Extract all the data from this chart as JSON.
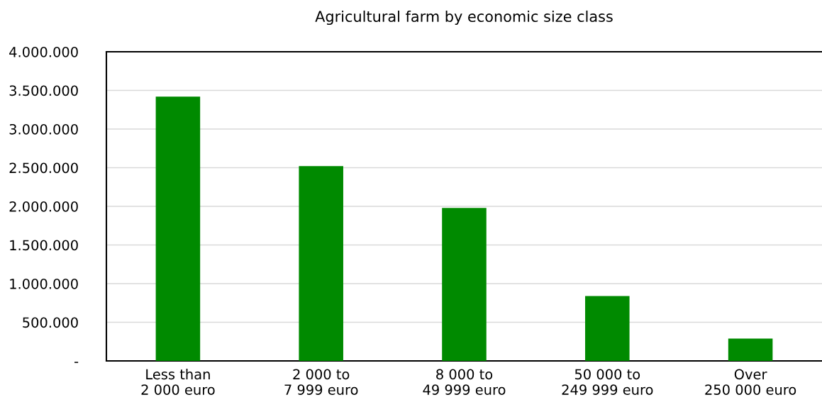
{
  "chart_data": {
    "type": "bar",
    "title": "Agricultural farm by economic size class",
    "categories": [
      "Less than\n2 000 euro",
      "2 000 to\n7 999 euro",
      "8 000 to\n49 999 euro",
      "50 000 to\n249 999 euro",
      "Over\n250 000 euro"
    ],
    "values": [
      3420000,
      2520000,
      1980000,
      840000,
      290000
    ],
    "color": "#008a00",
    "ylim": [
      0,
      4000000
    ],
    "yticks": [
      {
        "value": 0,
        "label": "-"
      },
      {
        "value": 500000,
        "label": "500.000"
      },
      {
        "value": 1000000,
        "label": "1.000.000"
      },
      {
        "value": 1500000,
        "label": "1.500.000"
      },
      {
        "value": 2000000,
        "label": "2.000.000"
      },
      {
        "value": 2500000,
        "label": "2.500.000"
      },
      {
        "value": 3000000,
        "label": "3.000.000"
      },
      {
        "value": 3500000,
        "label": "3.500.000"
      },
      {
        "value": 4000000,
        "label": "4.000.000"
      }
    ],
    "grid": "y",
    "legend": false
  }
}
